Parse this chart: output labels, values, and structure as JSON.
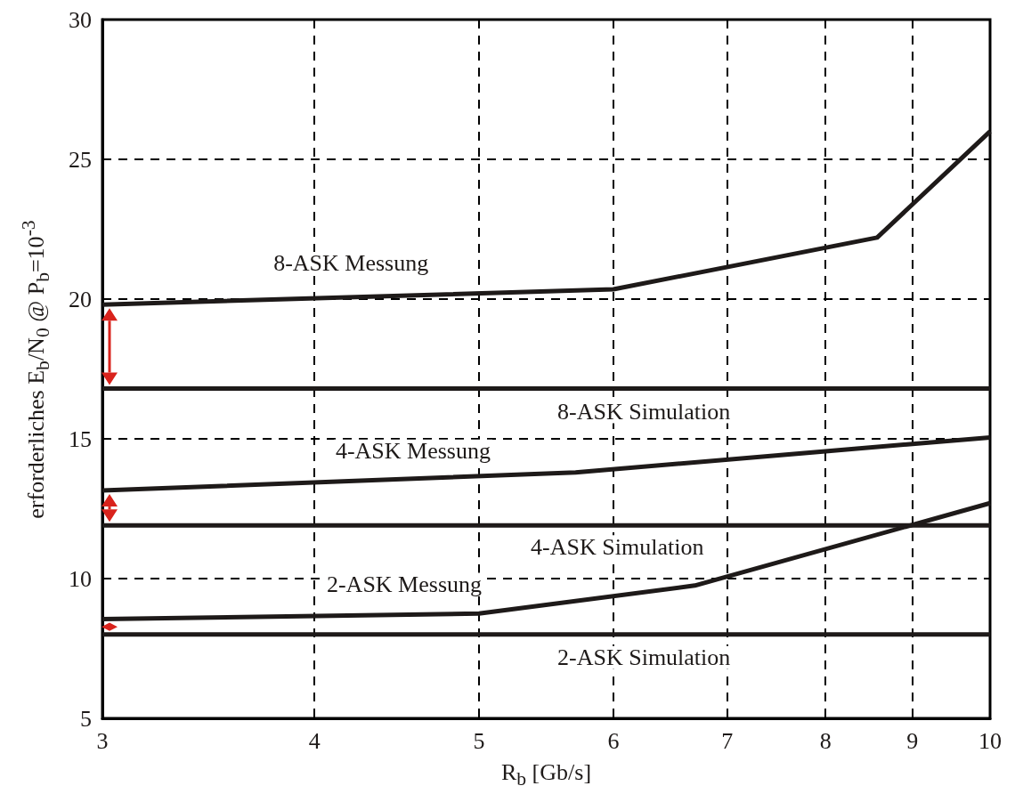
{
  "chart_data": {
    "type": "line",
    "xlabel": "R$_{b}$ [Gb/s]",
    "ylabel": "erforderliches E$_{b}$/N$_{0}$ @ P$_{b}$=10$^{-3}$",
    "series": [
      {
        "name": "8-ASK Messung",
        "color": "#1e1a19",
        "x": [
          3,
          6,
          8.58,
          10
        ],
        "values": [
          19.8,
          20.35,
          22.2,
          26.0
        ]
      },
      {
        "name": "8-ASK Simulation",
        "color": "#1e1a19",
        "x": [
          3,
          10
        ],
        "values": [
          16.8,
          16.8
        ]
      },
      {
        "name": "4-ASK Messung",
        "color": "#1e1a19",
        "x": [
          3,
          5.7,
          10
        ],
        "values": [
          13.15,
          13.8,
          15.05
        ]
      },
      {
        "name": "4-ASK Simulation",
        "color": "#1e1a19",
        "x": [
          3,
          10
        ],
        "values": [
          11.9,
          11.9
        ]
      },
      {
        "name": "2-ASK Messung",
        "color": "#1e1a19",
        "x": [
          3,
          5,
          6.7,
          10
        ],
        "values": [
          8.55,
          8.75,
          9.75,
          12.7
        ]
      },
      {
        "name": "2-ASK Simulation",
        "color": "#1e1a19",
        "x": [
          3,
          10
        ],
        "values": [
          8.0,
          8.0
        ]
      }
    ],
    "log": "x",
    "xlim": [
      3,
      10
    ],
    "xticks": [
      3,
      4,
      5,
      6,
      7,
      8,
      9,
      10
    ],
    "ylim": [
      5,
      30
    ],
    "yticks": [
      5,
      10,
      15,
      20,
      25,
      30
    ],
    "grid": true,
    "marker": "none",
    "line_style": "solid"
  }
}
